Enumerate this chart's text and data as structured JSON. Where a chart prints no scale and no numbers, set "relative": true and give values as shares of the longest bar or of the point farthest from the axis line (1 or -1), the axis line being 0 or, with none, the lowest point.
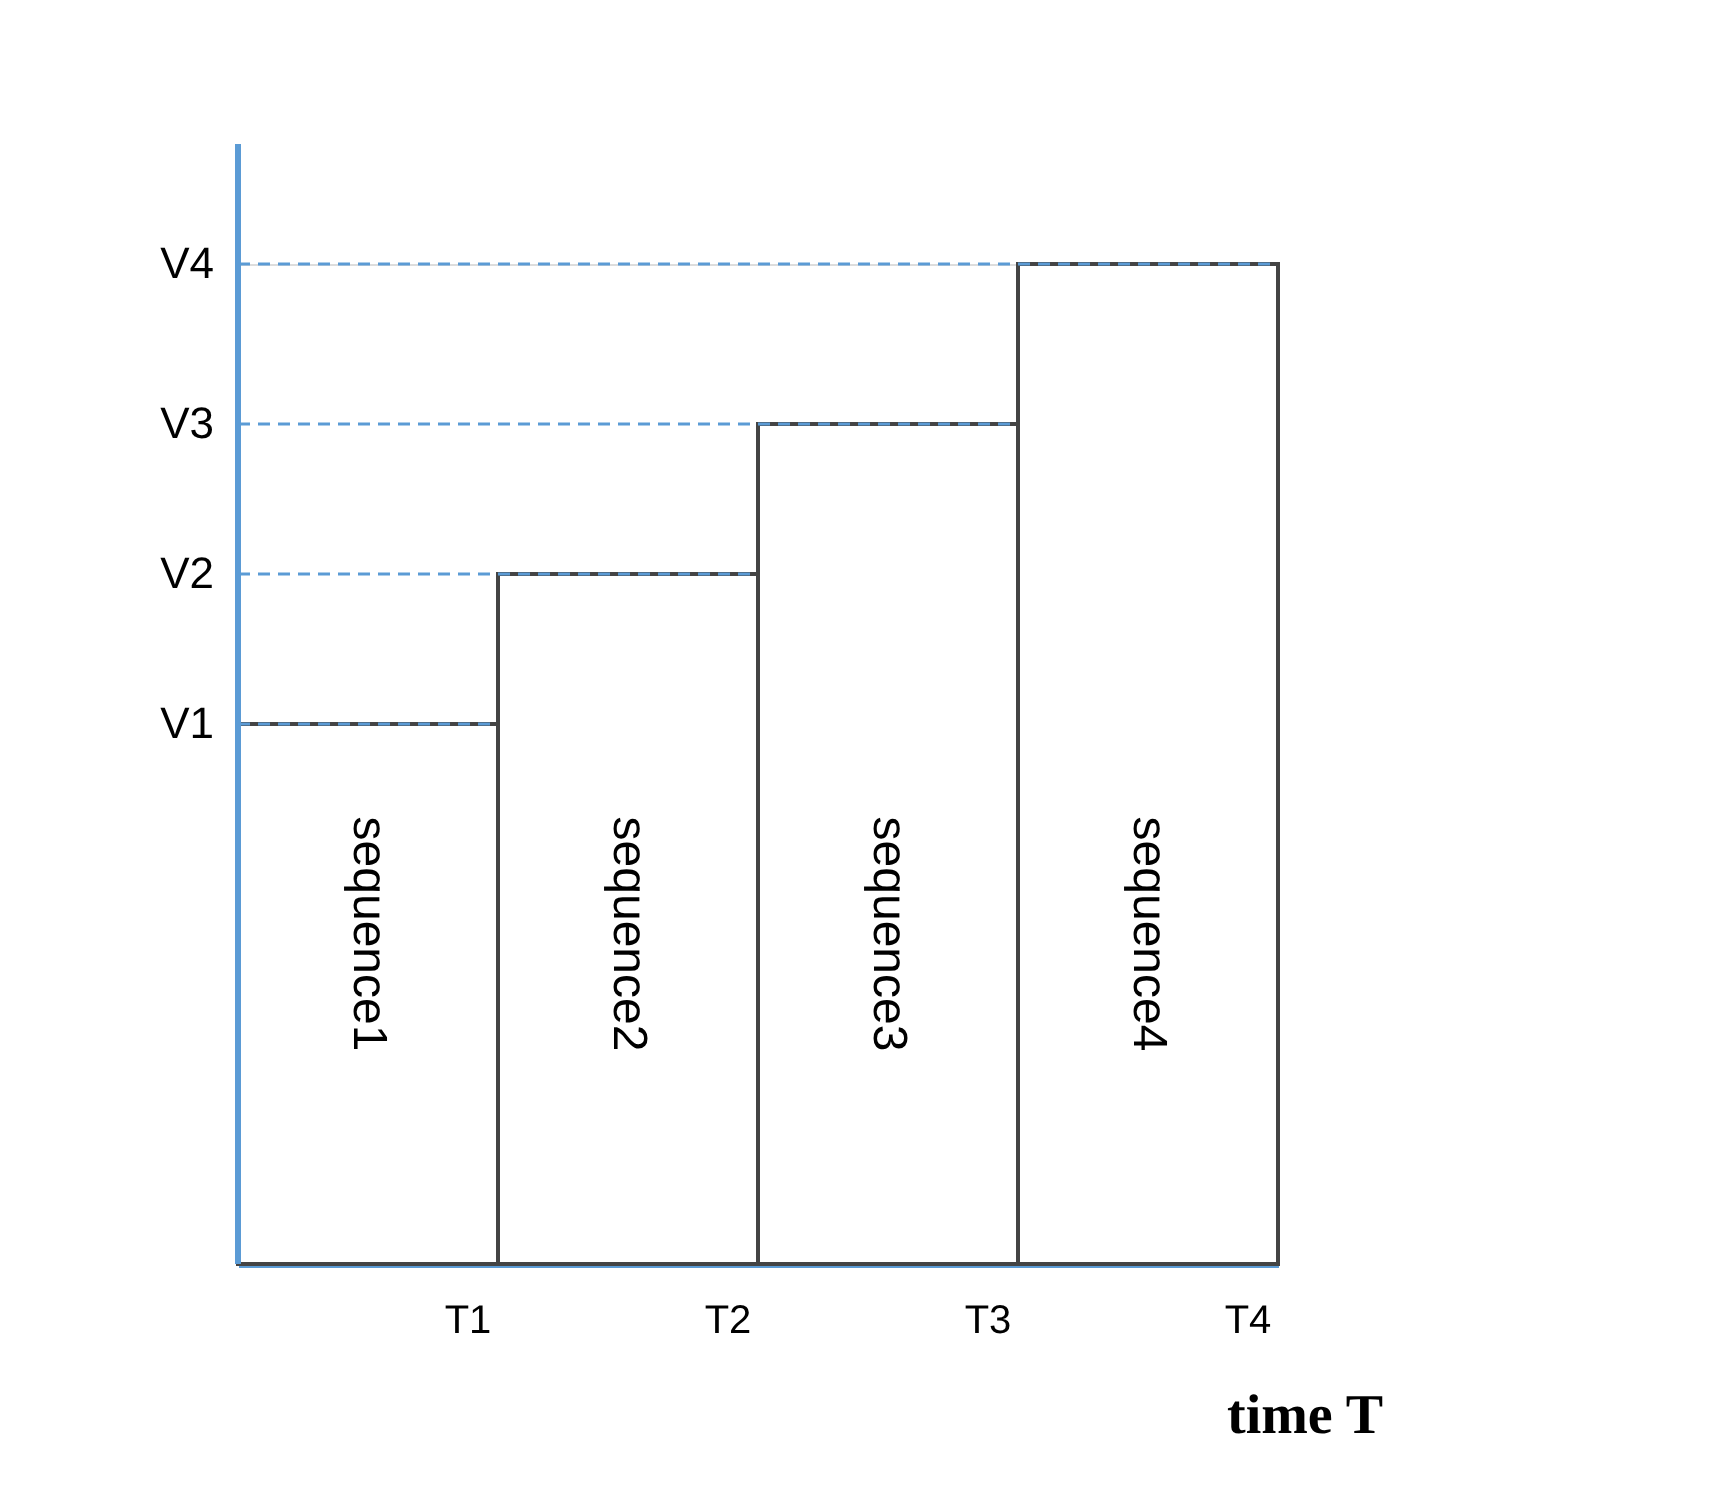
{
  "chart_data": {
    "type": "bar",
    "relative": true,
    "xlabel": "time T",
    "categories": [
      "T1",
      "T2",
      "T3",
      "T4"
    ],
    "values": [
      0.54,
      0.69,
      0.84,
      1.0
    ],
    "color": "#ffffff",
    "ref_lines": [
      {
        "axis": "y",
        "value": 0.54,
        "label": "V1",
        "color": "#5b9bd5",
        "line_style": "dashed"
      },
      {
        "axis": "y",
        "value": 0.69,
        "label": "V2",
        "color": "#5b9bd5",
        "line_style": "dashed"
      },
      {
        "axis": "y",
        "value": 0.84,
        "label": "V3",
        "color": "#5b9bd5",
        "line_style": "dashed"
      },
      {
        "axis": "y",
        "value": 1.0,
        "label": "V4",
        "color": "#5b9bd5",
        "line_style": "dashed"
      }
    ],
    "annotations": [
      "sequence1",
      "sequence2",
      "sequence3",
      "sequence4"
    ],
    "grid": false
  }
}
